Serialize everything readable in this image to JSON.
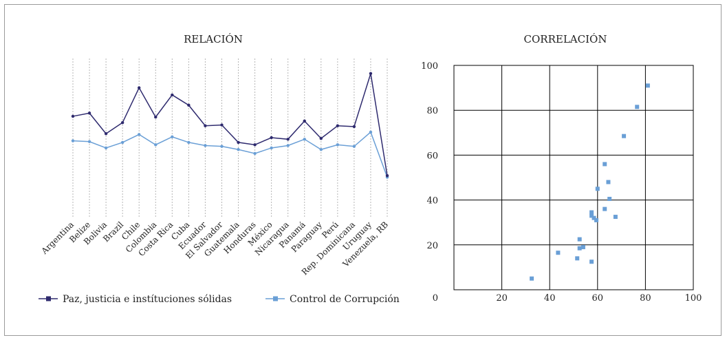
{
  "chart_data": [
    {
      "type": "line",
      "title": "RELACIÓN",
      "categories": [
        "Argentina",
        "Belize",
        "Bolivia",
        "Brazil",
        "Chile",
        "Colombia",
        "Costa Rica",
        "Cuba",
        "Ecuador",
        "El Salvador",
        "Guatemala",
        "Honduras",
        "México",
        "Nicaragua",
        "Panamá",
        "Paraguay",
        "Perú",
        "Rep. Dominicana",
        "Uruguay",
        "Venezuela, RB"
      ],
      "series": [
        {
          "name": "Paz, justicia e instítuciones sólidas",
          "color": "#2e2a6e",
          "values": [
            63.5,
            65.5,
            52.5,
            59.5,
            81.5,
            63,
            77,
            70.5,
            57.5,
            58,
            47,
            45.5,
            50,
            49,
            60.5,
            49.5,
            57.5,
            57,
            90.5,
            26
          ]
        },
        {
          "name": "Control de Corrupción",
          "color": "#6a9fd6",
          "values": [
            48,
            47.5,
            43.5,
            47,
            52,
            45.5,
            50.5,
            47,
            45,
            44.5,
            42.5,
            40,
            43.5,
            45,
            49,
            42.5,
            45.5,
            44.5,
            53.5,
            25
          ]
        }
      ],
      "legend": "bottom",
      "grid": "vertical dotted"
    },
    {
      "type": "scatter",
      "title": "CORRELACIÓN",
      "xlim": [
        0,
        100
      ],
      "ylim": [
        0,
        100
      ],
      "xticks": [
        20,
        40,
        60,
        80,
        100
      ],
      "yticks": [
        0,
        20,
        40,
        60,
        80,
        100
      ],
      "grid": true,
      "color": "#6a9fd6",
      "points": [
        {
          "x": 32.5,
          "y": 5
        },
        {
          "x": 43.5,
          "y": 16.5
        },
        {
          "x": 51.5,
          "y": 14
        },
        {
          "x": 52.5,
          "y": 18.5
        },
        {
          "x": 52.5,
          "y": 22.5
        },
        {
          "x": 54,
          "y": 19
        },
        {
          "x": 57.5,
          "y": 12.5
        },
        {
          "x": 57.5,
          "y": 33
        },
        {
          "x": 57.5,
          "y": 34.5
        },
        {
          "x": 58.5,
          "y": 32
        },
        {
          "x": 59.5,
          "y": 31
        },
        {
          "x": 60,
          "y": 45
        },
        {
          "x": 63,
          "y": 36
        },
        {
          "x": 63,
          "y": 56
        },
        {
          "x": 64.5,
          "y": 48
        },
        {
          "x": 65,
          "y": 40.5
        },
        {
          "x": 67.5,
          "y": 32.5
        },
        {
          "x": 71,
          "y": 68.5
        },
        {
          "x": 76.5,
          "y": 81.5
        },
        {
          "x": 81,
          "y": 91
        }
      ]
    }
  ]
}
